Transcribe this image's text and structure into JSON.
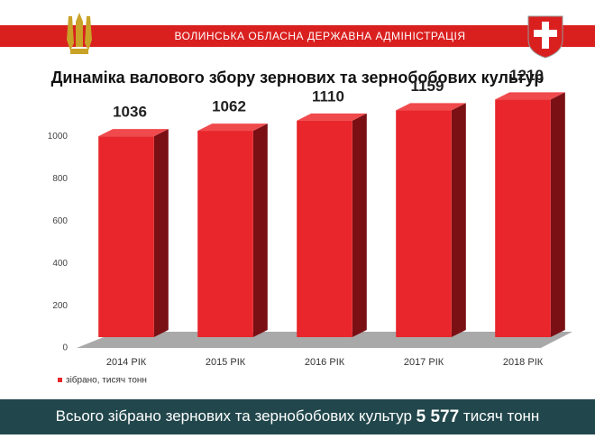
{
  "header": {
    "title": "ВОЛИНСЬКА ОБЛАСНА ДЕРЖАВНА АДМІНІСТРАЦІЯ"
  },
  "chart_data": {
    "type": "bar",
    "title": "Динаміка валового збору зернових та зернобобових культур",
    "categories": [
      "2014 РІК",
      "2015 РІК",
      "2016 РІК",
      "2017 РІК",
      "2018 РІК"
    ],
    "series": [
      {
        "name": "зібрано, тисяч тонн",
        "color": "#e8262b",
        "values": [
          1036,
          1062,
          1110,
          1159,
          1210
        ]
      }
    ],
    "ylim": [
      0,
      1250
    ],
    "yticks": [
      0,
      200,
      400,
      600,
      800,
      1000
    ],
    "grid": false
  },
  "footer": {
    "text_before": "Всього зібрано зернових та зернобобових культур",
    "total": "5 577",
    "text_after": "тисяч тонн"
  }
}
